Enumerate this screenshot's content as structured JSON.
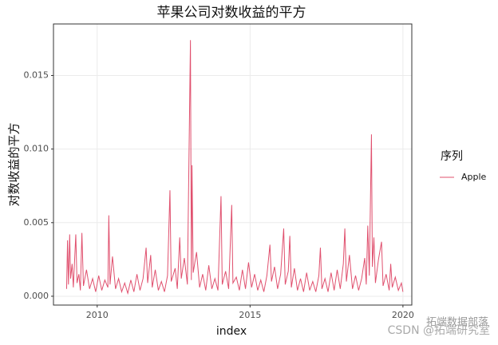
{
  "chart_data": {
    "type": "line",
    "title": "苹果公司对数收益的平方",
    "x_label": "index",
    "y_label": "对数收益的平方",
    "legend_title": "序列",
    "legend_position": "right",
    "grid": true,
    "xlim": [
      2008.57,
      2020.29
    ],
    "xticks": [
      2010,
      2015,
      2020
    ],
    "ylim": [
      -0.0006,
      0.0185
    ],
    "yticks": [
      {
        "value": 0,
        "label": "0.000"
      },
      {
        "value": 0.005,
        "label": "0.005"
      },
      {
        "value": 0.01,
        "label": "0.010"
      },
      {
        "value": 0.015,
        "label": "0.015"
      }
    ],
    "x": [
      2009.0,
      2009.03,
      2009.06,
      2009.1,
      2009.13,
      2009.18,
      2009.22,
      2009.3,
      2009.34,
      2009.4,
      2009.45,
      2009.5,
      2009.55,
      2009.65,
      2009.75,
      2009.85,
      2009.95,
      2010.05,
      2010.15,
      2010.25,
      2010.35,
      2010.38,
      2010.42,
      2010.5,
      2010.6,
      2010.7,
      2010.8,
      2010.9,
      2011.0,
      2011.1,
      2011.2,
      2011.3,
      2011.4,
      2011.5,
      2011.6,
      2011.65,
      2011.75,
      2011.8,
      2011.9,
      2012.0,
      2012.1,
      2012.2,
      2012.3,
      2012.38,
      2012.42,
      2012.55,
      2012.62,
      2012.7,
      2012.75,
      2012.85,
      2012.95,
      2013.05,
      2013.08,
      2013.1,
      2013.14,
      2013.25,
      2013.35,
      2013.45,
      2013.55,
      2013.65,
      2013.75,
      2013.85,
      2013.95,
      2014.05,
      2014.09,
      2014.2,
      2014.3,
      2014.4,
      2014.44,
      2014.55,
      2014.65,
      2014.75,
      2014.85,
      2014.95,
      2015.05,
      2015.15,
      2015.25,
      2015.35,
      2015.45,
      2015.55,
      2015.65,
      2015.7,
      2015.8,
      2015.9,
      2016.0,
      2016.1,
      2016.15,
      2016.25,
      2016.3,
      2016.35,
      2016.45,
      2016.55,
      2016.65,
      2016.75,
      2016.85,
      2016.95,
      2017.05,
      2017.15,
      2017.25,
      2017.3,
      2017.35,
      2017.45,
      2017.55,
      2017.65,
      2017.75,
      2017.85,
      2017.95,
      2018.05,
      2018.1,
      2018.15,
      2018.25,
      2018.35,
      2018.45,
      2018.55,
      2018.65,
      2018.75,
      2018.8,
      2018.85,
      2018.9,
      2018.97,
      2019.0,
      2019.05,
      2019.1,
      2019.2,
      2019.3,
      2019.35,
      2019.45,
      2019.55,
      2019.6,
      2019.65,
      2019.75,
      2019.85,
      2019.95,
      2020.0
    ],
    "series": [
      {
        "name": "Apple",
        "color": "#e0506e",
        "values": [
          0.0005,
          0.0038,
          0.0008,
          0.0042,
          0.0012,
          0.0022,
          0.0006,
          0.0042,
          0.0009,
          0.0015,
          0.0004,
          0.0043,
          0.0007,
          0.0018,
          0.0005,
          0.0012,
          0.0003,
          0.0014,
          0.0004,
          0.0011,
          0.0006,
          0.0055,
          0.0008,
          0.0027,
          0.0005,
          0.0012,
          0.0003,
          0.0009,
          0.0002,
          0.0011,
          0.0003,
          0.0015,
          0.0004,
          0.0012,
          0.0033,
          0.0009,
          0.0028,
          0.0006,
          0.0018,
          0.0004,
          0.001,
          0.0003,
          0.0014,
          0.0072,
          0.001,
          0.0019,
          0.0005,
          0.004,
          0.0012,
          0.0026,
          0.0008,
          0.0174,
          0.0011,
          0.0089,
          0.0016,
          0.003,
          0.0006,
          0.0015,
          0.0004,
          0.0021,
          0.0005,
          0.0012,
          0.0004,
          0.0068,
          0.0008,
          0.0017,
          0.0005,
          0.0062,
          0.0009,
          0.0013,
          0.0004,
          0.0018,
          0.0005,
          0.0023,
          0.0006,
          0.0015,
          0.0004,
          0.0011,
          0.0003,
          0.0014,
          0.0035,
          0.001,
          0.002,
          0.0005,
          0.0015,
          0.0046,
          0.0008,
          0.0017,
          0.0041,
          0.0006,
          0.0019,
          0.0004,
          0.0012,
          0.0003,
          0.0016,
          0.0004,
          0.001,
          0.0003,
          0.0014,
          0.0033,
          0.0005,
          0.0012,
          0.0003,
          0.0016,
          0.0004,
          0.0018,
          0.0005,
          0.0022,
          0.0046,
          0.001,
          0.0028,
          0.0005,
          0.0014,
          0.0004,
          0.0012,
          0.0026,
          0.0008,
          0.0048,
          0.0014,
          0.011,
          0.002,
          0.004,
          0.0009,
          0.0025,
          0.0037,
          0.0007,
          0.0015,
          0.0004,
          0.0022,
          0.0006,
          0.0013,
          0.0004,
          0.0009,
          0.0003
        ]
      }
    ],
    "watermark": [
      "拓端数据部落",
      "CSDN @拓端研究室"
    ]
  }
}
